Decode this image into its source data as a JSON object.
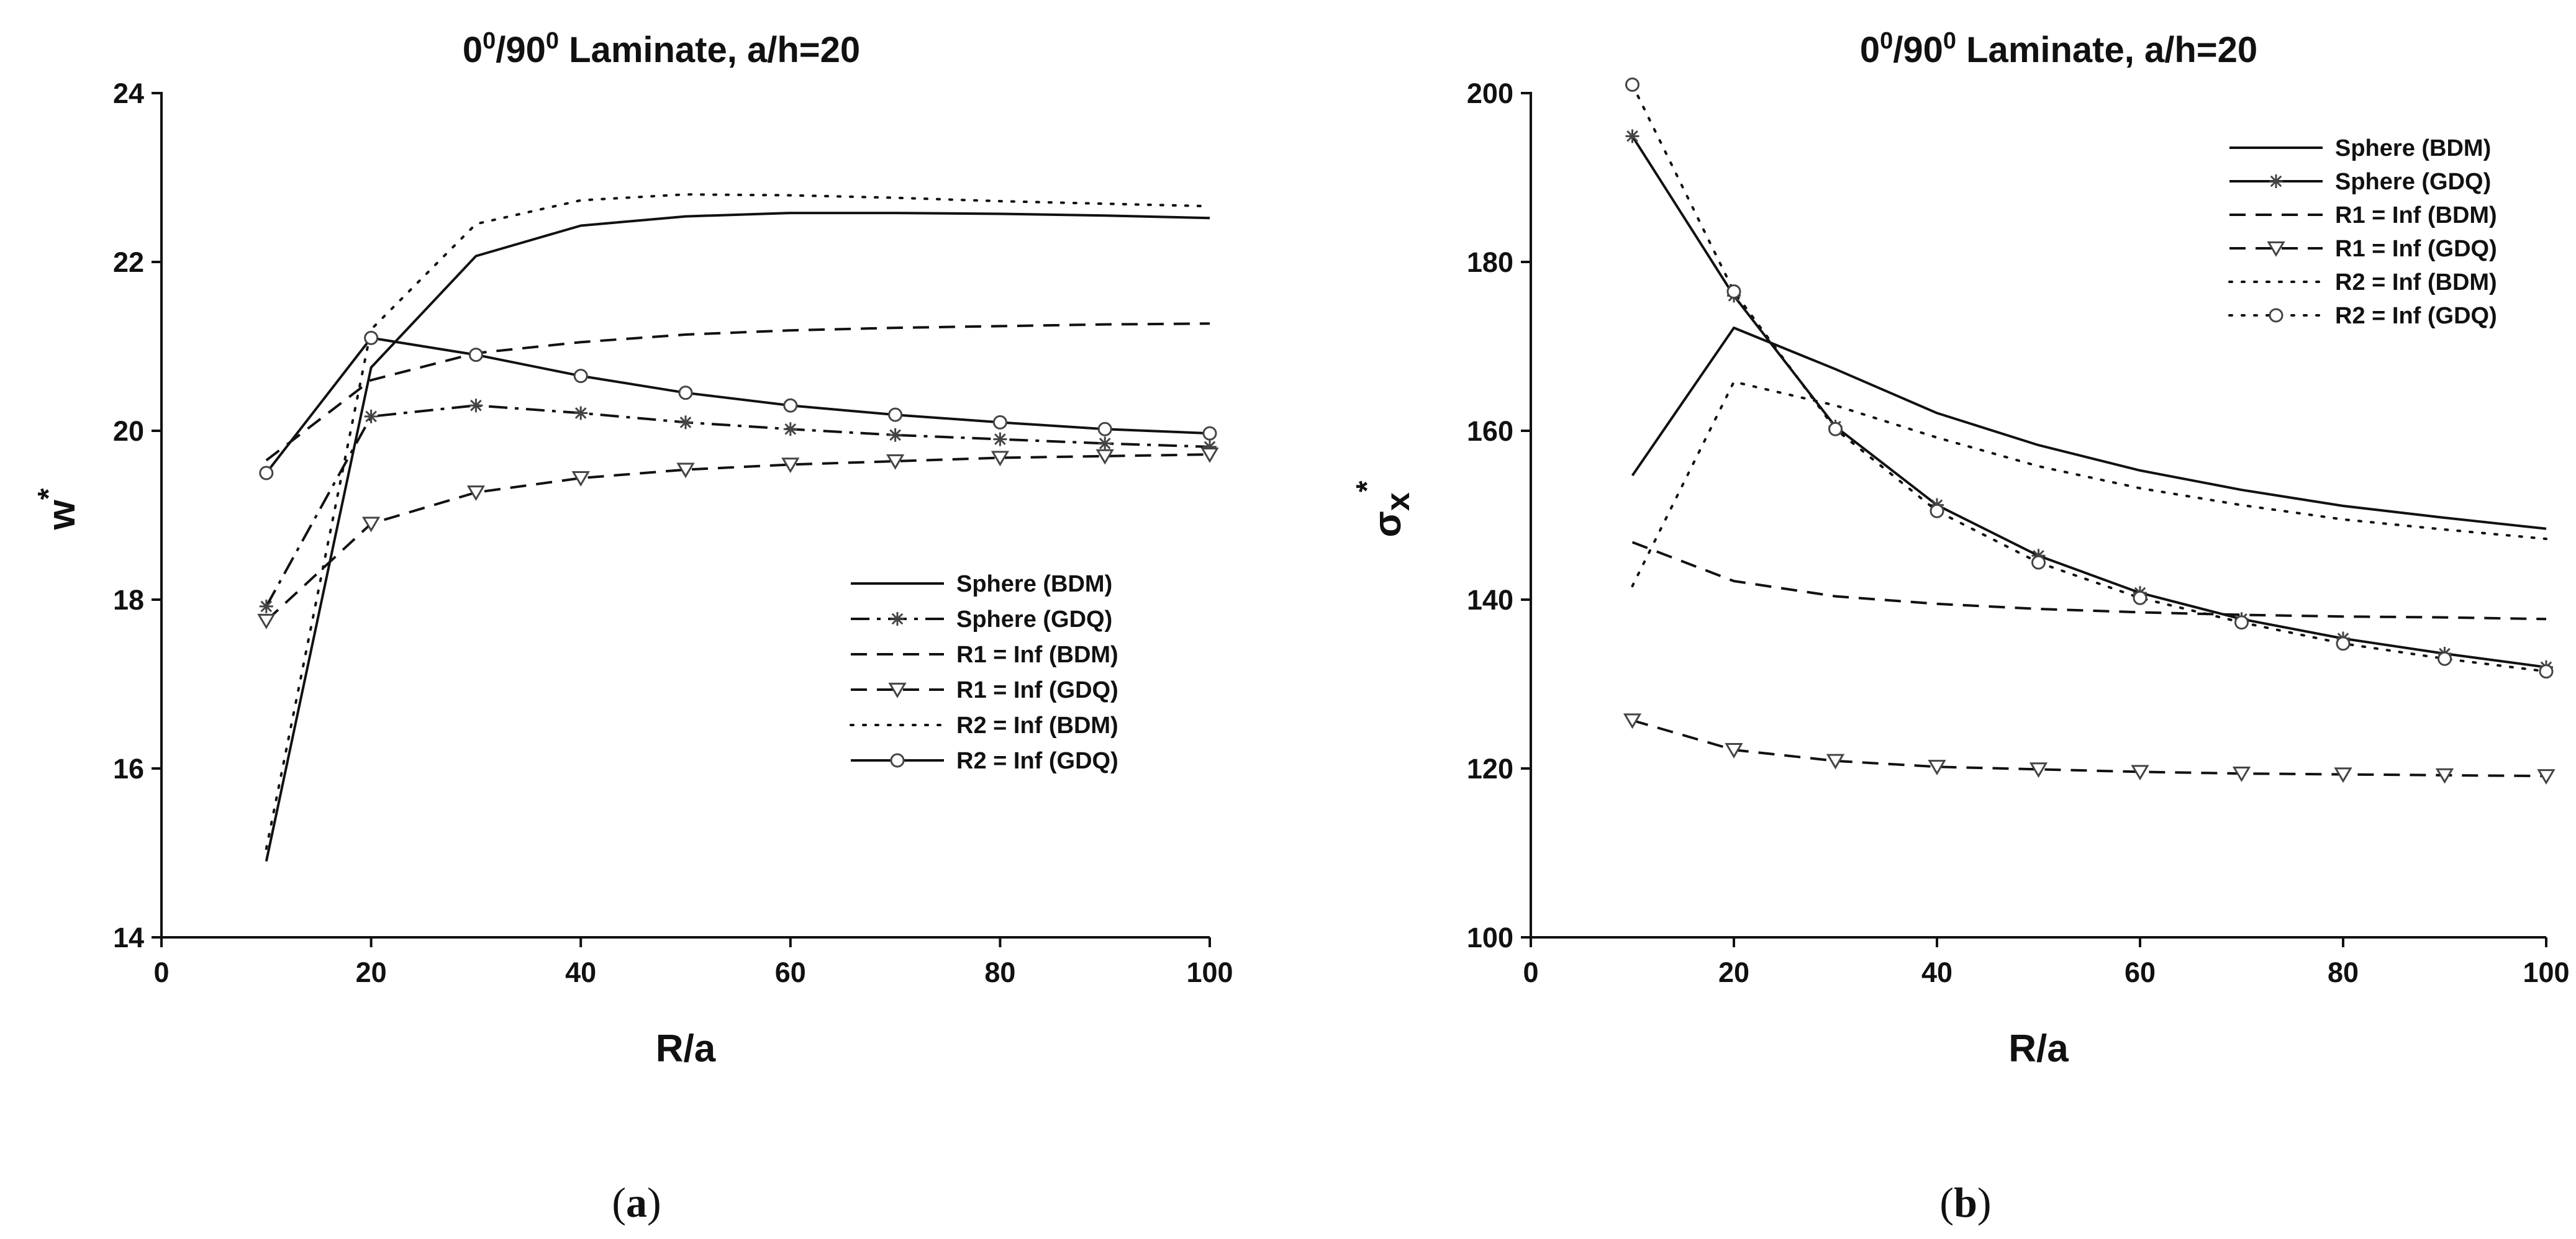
{
  "chart_data": [
    {
      "type": "line",
      "panel": "a",
      "title": "0⁰/90⁰ Laminate, a/h=20",
      "title_parts": {
        "pre": "0",
        "sup1": "0",
        "mid": "/90",
        "sup2": "0",
        "post": " Laminate, a/h=20"
      },
      "xlabel": "R/a",
      "ylabel": "w",
      "ylabel_sup": "*",
      "xlim": [
        0,
        100
      ],
      "ylim": [
        14,
        24
      ],
      "xticks": [
        0,
        20,
        40,
        60,
        80,
        100
      ],
      "yticks": [
        14,
        16,
        18,
        20,
        22,
        24
      ],
      "x": [
        10,
        20,
        30,
        40,
        50,
        60,
        70,
        80,
        90,
        100
      ],
      "legend_position": "center-right",
      "series": [
        {
          "name": "Sphere (BDM)",
          "style": "solid",
          "marker": "none",
          "values": [
            14.9,
            20.75,
            22.07,
            22.43,
            22.54,
            22.58,
            22.58,
            22.57,
            22.55,
            22.52
          ]
        },
        {
          "name": "Sphere (GDQ)",
          "style": "dashdot",
          "marker": "star",
          "values": [
            17.92,
            20.17,
            20.3,
            20.21,
            20.1,
            20.02,
            19.95,
            19.9,
            19.85,
            19.81
          ]
        },
        {
          "name": "R1 = Inf (BDM)",
          "style": "dashed",
          "marker": "none",
          "values": [
            19.65,
            20.6,
            20.92,
            21.05,
            21.14,
            21.19,
            21.22,
            21.24,
            21.26,
            21.27
          ]
        },
        {
          "name": "R1 = Inf (GDQ)",
          "style": "dashed",
          "marker": "triangle",
          "values": [
            17.75,
            18.9,
            19.27,
            19.44,
            19.54,
            19.6,
            19.64,
            19.68,
            19.7,
            19.72
          ]
        },
        {
          "name": "R2 = Inf (BDM)",
          "style": "dotted",
          "marker": "none",
          "values": [
            15.05,
            21.2,
            22.45,
            22.73,
            22.8,
            22.79,
            22.76,
            22.72,
            22.69,
            22.66
          ]
        },
        {
          "name": "R2 = Inf (GDQ)",
          "style": "solid",
          "marker": "circle",
          "values": [
            19.5,
            21.1,
            20.9,
            20.65,
            20.45,
            20.3,
            20.19,
            20.1,
            20.02,
            19.97
          ]
        }
      ]
    },
    {
      "type": "line",
      "panel": "b",
      "title": "0⁰/90⁰ Laminate, a/h=20",
      "title_parts": {
        "pre": "0",
        "sup1": "0",
        "mid": "/90",
        "sup2": "0",
        "post": " Laminate, a/h=20"
      },
      "xlabel": "R/a",
      "ylabel": "σ",
      "ylabel_sub": "x",
      "ylabel_sup": "*",
      "xlim": [
        0,
        100
      ],
      "ylim": [
        100,
        200
      ],
      "xticks": [
        0,
        20,
        40,
        60,
        80,
        100
      ],
      "yticks": [
        100,
        120,
        140,
        160,
        180,
        200
      ],
      "x": [
        10,
        20,
        30,
        40,
        50,
        60,
        70,
        80,
        90,
        100
      ],
      "legend_position": "top-right",
      "series": [
        {
          "name": "Sphere (BDM)",
          "style": "solid",
          "marker": "none",
          "values": [
            154.7,
            172.2,
            167.3,
            162.1,
            158.3,
            155.3,
            153.0,
            151.1,
            149.7,
            148.4
          ]
        },
        {
          "name": "Sphere (GDQ)",
          "style": "solid",
          "marker": "star",
          "values": [
            194.9,
            176.0,
            160.5,
            151.2,
            145.2,
            140.8,
            137.7,
            135.4,
            133.6,
            132.0
          ]
        },
        {
          "name": "R1 = Inf (BDM)",
          "style": "dashed",
          "marker": "none",
          "values": [
            146.8,
            142.2,
            140.4,
            139.5,
            138.9,
            138.5,
            138.2,
            138.0,
            137.9,
            137.7
          ]
        },
        {
          "name": "R1 = Inf (GDQ)",
          "style": "dashed",
          "marker": "triangle",
          "values": [
            125.7,
            122.2,
            120.9,
            120.2,
            119.9,
            119.6,
            119.4,
            119.3,
            119.2,
            119.1
          ]
        },
        {
          "name": "R2 = Inf (BDM)",
          "style": "dotted",
          "marker": "none",
          "values": [
            141.6,
            165.8,
            163.0,
            159.2,
            155.8,
            153.2,
            151.2,
            149.5,
            148.3,
            147.2
          ]
        },
        {
          "name": "R2 = Inf (GDQ)",
          "style": "dotted",
          "marker": "circle",
          "values": [
            201.0,
            176.5,
            160.2,
            150.5,
            144.4,
            140.2,
            137.3,
            134.8,
            133.0,
            131.5
          ]
        }
      ]
    }
  ],
  "captions": {
    "a": {
      "open": "(",
      "letter": "a",
      "close": ")"
    },
    "b": {
      "open": "(",
      "letter": "b",
      "close": ")"
    }
  }
}
